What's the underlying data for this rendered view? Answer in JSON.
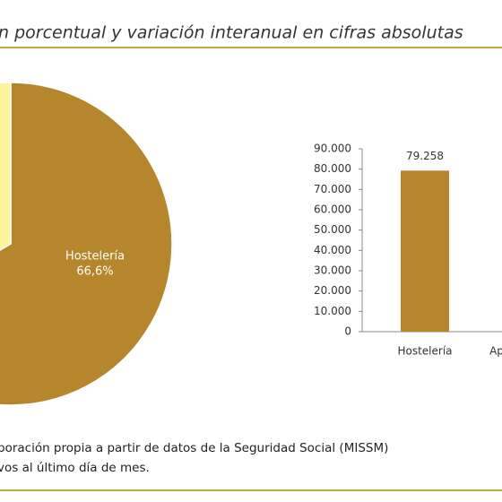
{
  "header": {
    "title": "n porcentual y variación interanual en cifras absolutas"
  },
  "chart_data": [
    {
      "type": "pie",
      "categories": [
        "Hostelería",
        null
      ],
      "values": [
        66.6,
        33.4
      ],
      "value_labels": [
        "66,6%",
        null
      ],
      "colors": [
        "#b5862b",
        "#fdf59c"
      ]
    },
    {
      "type": "bar",
      "categories": [
        "Hostelería",
        "Ap"
      ],
      "values": [
        79258,
        null
      ],
      "value_labels": [
        "79.258",
        null
      ],
      "color": "#b5862b",
      "ylim": [
        0,
        90000
      ],
      "yticks": [
        0,
        {
          "value": 10000,
          "label": "10.000"
        },
        {
          "value": 20000,
          "label": "20.000"
        },
        {
          "value": 30000,
          "label": "30.000"
        },
        {
          "value": 40000,
          "label": "40.000"
        },
        {
          "value": 50000,
          "label": "50.000"
        },
        {
          "value": 60000,
          "label": "60.000"
        },
        {
          "value": 70000,
          "label": "70.000"
        },
        {
          "value": 80000,
          "label": "80.000"
        },
        {
          "value": 90000,
          "label": "90.000"
        }
      ]
    }
  ],
  "footer": {
    "lines": [
      "boración propia a partir de datos de la Seguridad Social (MISSM)",
      "vos al último día de mes."
    ]
  }
}
